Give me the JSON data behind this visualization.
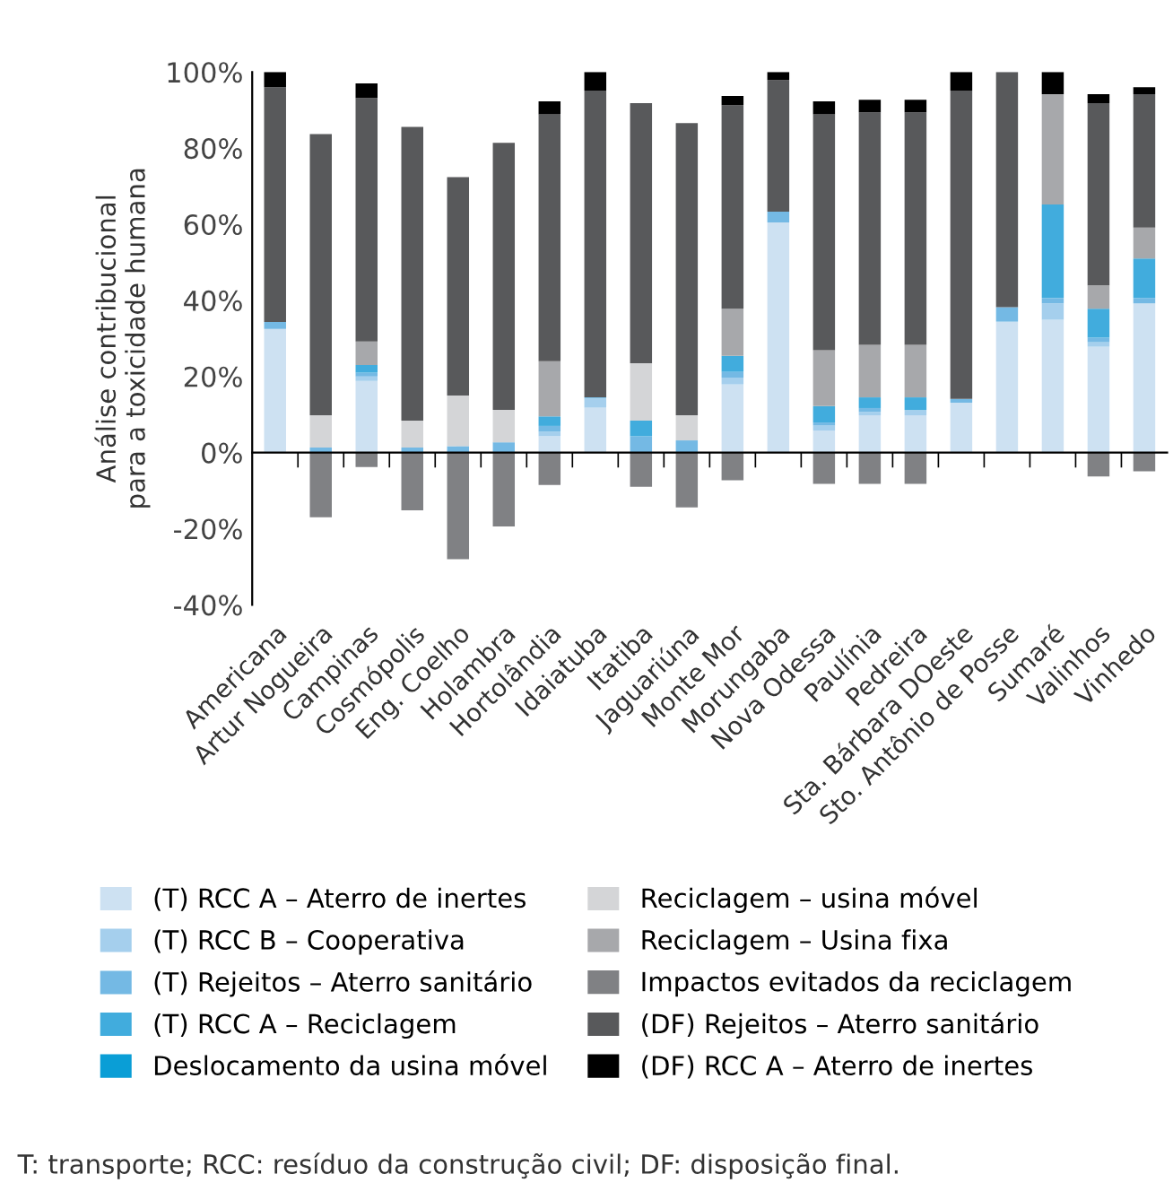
{
  "chart_data": {
    "type": "bar",
    "stacked": true,
    "ylabel": "Análise contribucional\npara a toxicidade humana",
    "categories": [
      "Americana",
      "Artur Nogueira",
      "Campinas",
      "Cosmópolis",
      "Eng. Coelho",
      "Holambra",
      "Hortolândia",
      "Idaiatuba",
      "Itatiba",
      "Jaguariúna",
      "Monte Mor",
      "Morungaba",
      "Nova Odessa",
      "Paulínia",
      "Pedreira",
      "Sta. Bárbara DOeste",
      "Sto. Antônio de Posse",
      "Sumaré",
      "Valinhos",
      "Vinhedo"
    ],
    "series": [
      {
        "name": "(T) RCC A – Aterro de inertes",
        "color": "#cde1f2",
        "values": [
          32.5,
          null,
          18.8,
          null,
          null,
          null,
          4.3,
          11.8,
          null,
          null,
          17.9,
          60.5,
          5.8,
          9.8,
          9.8,
          13.1,
          34.4,
          34.9,
          27.8,
          39.2
        ]
      },
      {
        "name": "(T) RCC B – Cooperativa",
        "color": "#a5cfed",
        "values": [
          null,
          null,
          1.2,
          null,
          null,
          null,
          1.2,
          2.4,
          null,
          null,
          1.8,
          null,
          1.3,
          0.9,
          1.4,
          null,
          null,
          4.3,
          1.2,
          null
        ]
      },
      {
        "name": "(T) Rejeitos – Aterro sanitário",
        "color": "#74b9e4",
        "values": [
          1.8,
          1.3,
          1.0,
          1.3,
          1.7,
          2.7,
          1.5,
          0.3,
          4.3,
          3.2,
          1.5,
          2.8,
          0.8,
          1.0,
          null,
          1.0,
          3.8,
          1.4,
          1.2,
          1.4
        ]
      },
      {
        "name": "(T) RCC A – Reciclagem",
        "color": "#41acdd",
        "values": [
          null,
          null,
          2.0,
          null,
          null,
          null,
          2.5,
          null,
          4.1,
          null,
          4.2,
          null,
          4.3,
          2.8,
          3.3,
          null,
          null,
          24.6,
          7.6,
          10.4
        ]
      },
      {
        "name": "Deslocamento da usina móvel",
        "color": "#0a9ed6",
        "values": [
          null,
          null,
          null,
          null,
          null,
          null,
          null,
          null,
          null,
          null,
          null,
          null,
          null,
          null,
          null,
          null,
          null,
          null,
          null,
          null
        ]
      },
      {
        "name": "Reciclagem – usina móvel",
        "color": "#d4d5d7",
        "values": [
          null,
          8.5,
          null,
          7.1,
          13.3,
          8.5,
          null,
          null,
          15.1,
          6.6,
          null,
          null,
          null,
          null,
          null,
          null,
          null,
          null,
          null,
          null
        ]
      },
      {
        "name": "Reciclagem – Usina fixa",
        "color": "#a7a8ab",
        "values": [
          null,
          null,
          6.2,
          null,
          null,
          null,
          14.5,
          null,
          null,
          null,
          12.4,
          null,
          14.7,
          13.8,
          13.8,
          null,
          null,
          29.0,
          6.1,
          8.1
        ]
      },
      {
        "name": "Impactos evitados da reciclagem",
        "color": "#808184",
        "values": [
          null,
          -17.0,
          -3.8,
          -15.2,
          -28.0,
          -19.4,
          -8.5,
          null,
          -9.0,
          -14.4,
          -7.3,
          null,
          -8.2,
          -8.2,
          -8.2,
          null,
          null,
          null,
          -6.3,
          -4.9
        ]
      },
      {
        "name": "(DF) Rejeitos – Aterro sanitário",
        "color": "#58595b",
        "values": [
          61.7,
          73.9,
          64.0,
          77.2,
          57.4,
          70.2,
          64.9,
          80.6,
          68.3,
          76.8,
          53.5,
          34.6,
          62.0,
          61.1,
          61.1,
          81.0,
          61.8,
          null,
          47.9,
          35.1
        ]
      },
      {
        "name": "(DF) RCC A – Aterro de inertes",
        "color": "#000000",
        "values": [
          4.0,
          null,
          3.8,
          null,
          null,
          null,
          3.4,
          4.9,
          null,
          null,
          2.4,
          2.1,
          3.4,
          3.3,
          3.3,
          4.9,
          null,
          5.8,
          2.4,
          1.8
        ]
      }
    ],
    "ylim": [
      -40,
      100
    ],
    "yticks": [
      {
        "value": -40,
        "label": "-40%"
      },
      {
        "value": -20,
        "label": "-20%"
      },
      {
        "value": 0,
        "label": "0%"
      },
      {
        "value": 20,
        "label": "20%"
      },
      {
        "value": 40,
        "label": "40%"
      },
      {
        "value": 60,
        "label": "60%"
      },
      {
        "value": 80,
        "label": "80%"
      },
      {
        "value": 100,
        "label": "100%"
      }
    ],
    "legend": "bottom",
    "annotations": [
      "T: transporte; RCC: resíduo da construção civil; DF: disposição final."
    ]
  }
}
